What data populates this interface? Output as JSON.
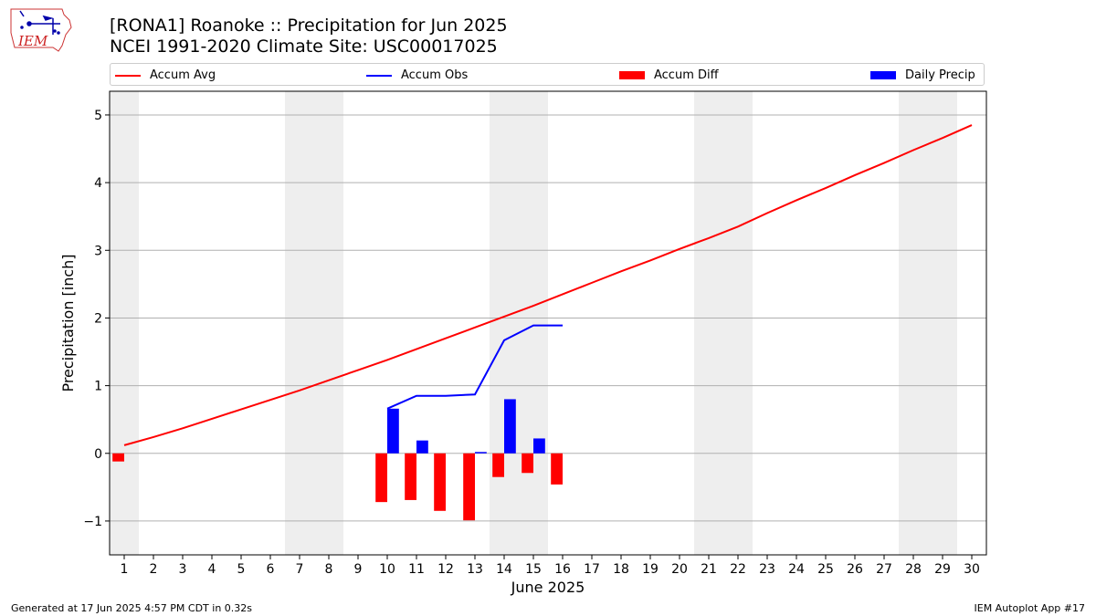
{
  "title_line1": "[RONA1] Roanoke :: Precipitation for Jun 2025",
  "title_line2": "NCEI 1991-2020 Climate Site: USC00017025",
  "logo_text": "IEM",
  "legend": {
    "accum_avg": "Accum Avg",
    "accum_obs": "Accum Obs",
    "accum_diff": "Accum Diff",
    "daily_precip": "Daily Precip"
  },
  "footer": {
    "left": "Generated at 17 Jun 2025 4:57 PM CDT in 0.32s",
    "right": "IEM Autoplot App #17"
  },
  "colors": {
    "avg": "#ff0000",
    "obs": "#0000ff",
    "diff": "#ff0000",
    "daily": "#0000ff",
    "weekend_band": "#eeeeee",
    "grid": "#b0b0b0"
  },
  "chart_data": {
    "type": "bar",
    "xlabel": "June 2025",
    "ylabel": "Precipitation [inch]",
    "xlim": [
      0.5,
      30.5
    ],
    "ylim": [
      -1.5,
      5.35
    ],
    "y_ticks": [
      -1,
      0,
      1,
      2,
      3,
      4,
      5
    ],
    "y_tick_labels": [
      "−1",
      "0",
      "1",
      "2",
      "3",
      "4",
      "5"
    ],
    "x_ticks": [
      1,
      2,
      3,
      4,
      5,
      6,
      7,
      8,
      9,
      10,
      11,
      12,
      13,
      14,
      15,
      16,
      17,
      18,
      19,
      20,
      21,
      22,
      23,
      24,
      25,
      26,
      27,
      28,
      29,
      30
    ],
    "grid": "horizontal",
    "legend_position": "top",
    "weekend_bands": [
      [
        0.5,
        1.5
      ],
      [
        6.5,
        8.5
      ],
      [
        13.5,
        15.5
      ],
      [
        20.5,
        22.5
      ],
      [
        27.5,
        29.5
      ]
    ],
    "accum_avg": {
      "name": "Accum Avg",
      "x": [
        1,
        2,
        3,
        4,
        5,
        6,
        7,
        8,
        9,
        10,
        11,
        12,
        13,
        14,
        15,
        16,
        17,
        18,
        19,
        20,
        21,
        22,
        23,
        24,
        25,
        26,
        27,
        28,
        29,
        30
      ],
      "values": [
        0.12,
        0.24,
        0.37,
        0.51,
        0.65,
        0.79,
        0.93,
        1.08,
        1.23,
        1.38,
        1.54,
        1.7,
        1.86,
        2.02,
        2.18,
        2.35,
        2.52,
        2.69,
        2.85,
        3.02,
        3.18,
        3.35,
        3.55,
        3.74,
        3.92,
        4.11,
        4.29,
        4.48,
        4.66,
        4.85
      ]
    },
    "accum_obs": {
      "name": "Accum Obs",
      "x": [
        10,
        11,
        12,
        13,
        14,
        15,
        16
      ],
      "values": [
        0.66,
        0.85,
        0.85,
        0.87,
        1.67,
        1.89,
        1.89
      ]
    },
    "accum_diff": {
      "name": "Accum Diff",
      "x": [
        1,
        10,
        11,
        12,
        13,
        14,
        15,
        16
      ],
      "values": [
        -0.12,
        -0.72,
        -0.69,
        -0.85,
        -0.99,
        -0.35,
        -0.29,
        -0.46
      ]
    },
    "daily_precip": {
      "name": "Daily Precip",
      "x": [
        10,
        11,
        13,
        14,
        15
      ],
      "values": [
        0.66,
        0.19,
        0.02,
        0.8,
        0.22
      ]
    }
  }
}
